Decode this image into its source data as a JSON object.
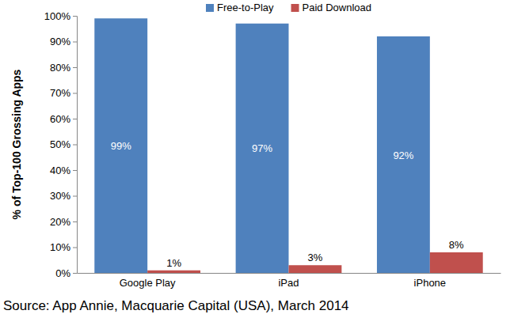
{
  "chart_data": {
    "type": "bar",
    "y_label": "% of Top-100 Grossing Apps",
    "source": "Source: App Annie, Macquarie Capital (USA), March 2014",
    "categories": [
      "Google Play",
      "iPad",
      "iPhone"
    ],
    "series": [
      {
        "name": "Free-to-Play",
        "color": "#4f81bd",
        "values": [
          99,
          97,
          92
        ],
        "value_labels": [
          "99%",
          "97%",
          "92%"
        ]
      },
      {
        "name": "Paid Download",
        "color": "#c0504d",
        "values": [
          1,
          3,
          8
        ],
        "value_labels": [
          "1%",
          "3%",
          "8%"
        ]
      }
    ],
    "ylim": [
      0,
      100
    ],
    "yticks": [
      {
        "value": 0,
        "label": "0%"
      },
      {
        "value": 10,
        "label": "10%"
      },
      {
        "value": 20,
        "label": "20%"
      },
      {
        "value": 30,
        "label": "30%"
      },
      {
        "value": 40,
        "label": "40%"
      },
      {
        "value": 50,
        "label": "50%"
      },
      {
        "value": 60,
        "label": "60%"
      },
      {
        "value": 70,
        "label": "70%"
      },
      {
        "value": 80,
        "label": "80%"
      },
      {
        "value": 90,
        "label": "90%"
      },
      {
        "value": 100,
        "label": "100%"
      }
    ],
    "grid": false,
    "legend": "top",
    "data_labels": true
  }
}
